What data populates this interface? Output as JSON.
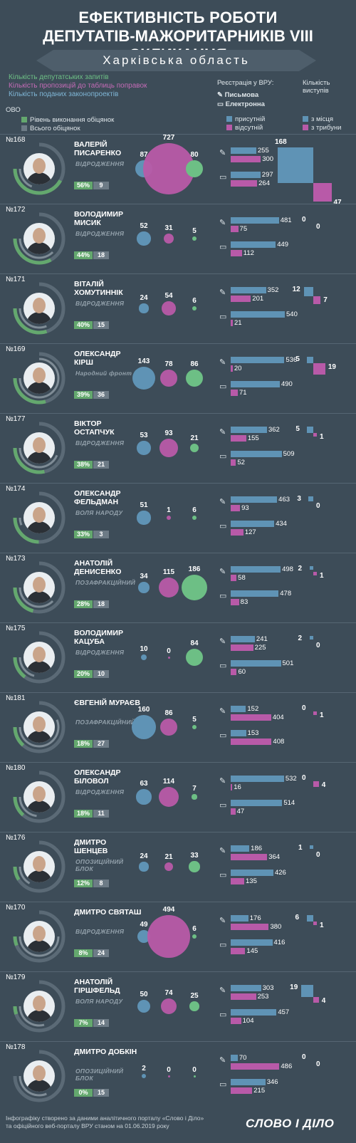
{
  "header": {
    "title_line1": "ЕФЕКТИВНІСТЬ РОБОТИ",
    "title_line2": "ДЕПУТАТІВ-МАЖОРИТАРНИКІВ VIII СКЛИКАННЯ",
    "region": "Харківська область"
  },
  "legend": {
    "requests": "Кількість депутатських запитів",
    "proposals": "Кількість пропозицій до таблиць поправок",
    "bills": "Кількість поданих законопроектів",
    "ovo": "ОВО",
    "promise_level": "Рівень виконання обіцянок",
    "promise_total": "Всього обіцянок",
    "registration_title": "Реєстрація у ВРУ:",
    "written": "Письмова",
    "electronic": "Електронна",
    "present": "присутній",
    "absent": "відсутній",
    "speeches_title": "Кількість виступів",
    "from_seat": "з місця",
    "from_podium": "з трибуни"
  },
  "colors": {
    "background": "#3d4c58",
    "requests": "#5f93b5",
    "proposals": "#b85aa8",
    "bills": "#6dbf85",
    "promise": "#64a86e",
    "present": "#5f93b5",
    "absent": "#b85aa8",
    "icon_written": "pencil-icon",
    "icon_electronic": "monitor-icon"
  },
  "chart_data": {
    "type": "table",
    "deputies": [
      {
        "district": "№168",
        "name": "ВАЛЕРІЙ ПИСАРЕНКО",
        "party": "ВІДРОДЖЕННЯ",
        "promise_pct": "56%",
        "promises": 9,
        "promise_level": 0.56,
        "requests": 87,
        "proposals": 727,
        "bills": 80,
        "written_present": 255,
        "written_absent": 300,
        "electronic_present": 297,
        "electronic_absent": 264,
        "speech_seat": 168,
        "speech_podium": 47
      },
      {
        "district": "№172",
        "name": "ВОЛОДИМИР МИСИК",
        "party": "ВІДРОДЖЕННЯ",
        "promise_pct": "44%",
        "promises": 18,
        "promise_level": 0.44,
        "requests": 52,
        "proposals": 31,
        "bills": 5,
        "written_present": 481,
        "written_absent": 75,
        "electronic_present": 449,
        "electronic_absent": 112,
        "speech_seat": 0,
        "speech_podium": 0
      },
      {
        "district": "№171",
        "name": "ВІТАЛІЙ ХОМУТИННІК",
        "party": "ВІДРОДЖЕННЯ",
        "promise_pct": "40%",
        "promises": 15,
        "promise_level": 0.4,
        "requests": 24,
        "proposals": 54,
        "bills": 6,
        "written_present": 352,
        "written_absent": 201,
        "electronic_present": 540,
        "electronic_absent": 21,
        "speech_seat": 12,
        "speech_podium": 7
      },
      {
        "district": "№169",
        "name": "ОЛЕКСАНДР КІРШ",
        "party": "Народний фронт",
        "promise_pct": "39%",
        "promises": 36,
        "promise_level": 0.39,
        "requests": 143,
        "proposals": 78,
        "bills": 86,
        "written_present": 536,
        "written_absent": 20,
        "electronic_present": 490,
        "electronic_absent": 71,
        "speech_seat": 5,
        "speech_podium": 19
      },
      {
        "district": "№177",
        "name": "ВІКТОР ОСТАПЧУК",
        "party": "ВІДРОДЖЕННЯ",
        "promise_pct": "38%",
        "promises": 21,
        "promise_level": 0.38,
        "requests": 53,
        "proposals": 93,
        "bills": 21,
        "written_present": 362,
        "written_absent": 155,
        "electronic_present": 509,
        "electronic_absent": 52,
        "speech_seat": 5,
        "speech_podium": 1
      },
      {
        "district": "№174",
        "name": "ОЛЕКСАНДР ФЕЛЬДМАН",
        "party": "ВОЛЯ НАРОДУ",
        "promise_pct": "33%",
        "promises": 3,
        "promise_level": 0.33,
        "requests": 51,
        "proposals": 1,
        "bills": 6,
        "written_present": 463,
        "written_absent": 93,
        "electronic_present": 434,
        "electronic_absent": 127,
        "speech_seat": 3,
        "speech_podium": 0
      },
      {
        "district": "№173",
        "name": "АНАТОЛІЙ ДЕНИСЕНКО",
        "party": "ПОЗАФРАКЦІЙНИЙ",
        "promise_pct": "28%",
        "promises": 18,
        "promise_level": 0.28,
        "requests": 34,
        "proposals": 115,
        "bills": 186,
        "written_present": 498,
        "written_absent": 58,
        "electronic_present": 478,
        "electronic_absent": 83,
        "speech_seat": 2,
        "speech_podium": 1
      },
      {
        "district": "№175",
        "name": "ВОЛОДИМИР КАЦУБА",
        "party": "ВІДРОДЖЕННЯ",
        "promise_pct": "20%",
        "promises": 10,
        "promise_level": 0.2,
        "requests": 10,
        "proposals": 0,
        "bills": 84,
        "written_present": 241,
        "written_absent": 225,
        "electronic_present": 501,
        "electronic_absent": 60,
        "speech_seat": 2,
        "speech_podium": 0
      },
      {
        "district": "№181",
        "name": "ЄВГЕНІЙ МУРАЄВ",
        "party": "ПОЗАФРАКЦІЙНИЙ",
        "promise_pct": "18%",
        "promises": 27,
        "promise_level": 0.18,
        "requests": 160,
        "proposals": 86,
        "bills": 5,
        "written_present": 152,
        "written_absent": 404,
        "electronic_present": 153,
        "electronic_absent": 408,
        "speech_seat": 0,
        "speech_podium": 1
      },
      {
        "district": "№180",
        "name": "ОЛЕКСАНДР БІЛОВОЛ",
        "party": "ВІДРОДЖЕННЯ",
        "promise_pct": "18%",
        "promises": 11,
        "promise_level": 0.18,
        "requests": 63,
        "proposals": 114,
        "bills": 7,
        "written_present": 532,
        "written_absent": 16,
        "electronic_present": 514,
        "electronic_absent": 47,
        "speech_seat": 0,
        "speech_podium": 4
      },
      {
        "district": "№176",
        "name": "ДМИТРО ШЕНЦЕВ",
        "party": "ОПОЗИЦІЙНИЙ БЛОК",
        "promise_pct": "12%",
        "promises": 8,
        "promise_level": 0.12,
        "requests": 24,
        "proposals": 21,
        "bills": 33,
        "written_present": 186,
        "written_absent": 364,
        "electronic_present": 426,
        "electronic_absent": 135,
        "speech_seat": 1,
        "speech_podium": 0
      },
      {
        "district": "№170",
        "name": "ДМИТРО СВЯТАШ",
        "party": "ВІДРОДЖЕННЯ",
        "promise_pct": "8%",
        "promises": 24,
        "promise_level": 0.08,
        "requests": 49,
        "proposals": 494,
        "bills": 6,
        "written_present": 176,
        "written_absent": 380,
        "electronic_present": 416,
        "electronic_absent": 145,
        "speech_seat": 6,
        "speech_podium": 1
      },
      {
        "district": "№179",
        "name": "АНАТОЛІЙ ГІРШФЕЛЬД",
        "party": "ВОЛЯ НАРОДУ",
        "promise_pct": "7%",
        "promises": 14,
        "promise_level": 0.07,
        "requests": 50,
        "proposals": 74,
        "bills": 25,
        "written_present": 303,
        "written_absent": 253,
        "electronic_present": 457,
        "electronic_absent": 104,
        "speech_seat": 19,
        "speech_podium": 4
      },
      {
        "district": "№178",
        "name": "ДМИТРО ДОБКІН",
        "party": "ОПОЗИЦІЙНИЙ БЛОК",
        "promise_pct": "0%",
        "promises": 15,
        "promise_level": 0.0,
        "requests": 2,
        "proposals": 0,
        "bills": 0,
        "written_present": 70,
        "written_absent": 486,
        "electronic_present": 346,
        "electronic_absent": 215,
        "speech_seat": 0,
        "speech_podium": 0
      }
    ]
  },
  "footer": {
    "line1": "Інфографіку створено за даними аналітичного порталу «Слово і Діло»",
    "line2": "та офіційного веб-порталу ВРУ станом на 01.06.2019 року",
    "logo": "СЛОВО І ДІЛО"
  }
}
